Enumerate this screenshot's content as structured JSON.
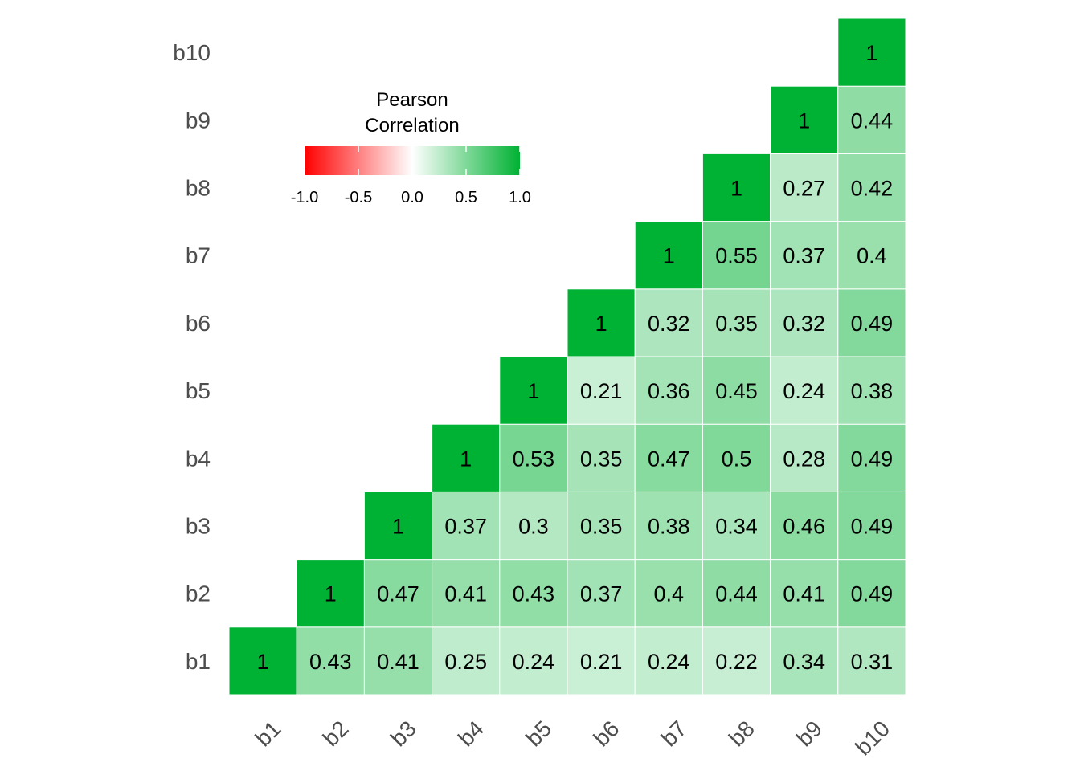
{
  "chart_data": {
    "type": "heatmap",
    "title": "",
    "xlabel": "",
    "ylabel": "",
    "variables": [
      "b1",
      "b2",
      "b3",
      "b4",
      "b5",
      "b6",
      "b7",
      "b8",
      "b9",
      "b10"
    ],
    "layout": "lower-triangle, b1 at bottom-left, x labels rotated 45 degrees",
    "matrix": [
      [
        1,
        0.43,
        0.41,
        0.25,
        0.24,
        0.21,
        0.24,
        0.22,
        0.34,
        0.31
      ],
      [
        0.43,
        1,
        0.47,
        0.41,
        0.43,
        0.37,
        0.4,
        0.44,
        0.41,
        0.49
      ],
      [
        0.41,
        0.47,
        1,
        0.37,
        0.3,
        0.35,
        0.38,
        0.34,
        0.46,
        0.49
      ],
      [
        0.25,
        0.41,
        0.37,
        1,
        0.53,
        0.35,
        0.47,
        0.5,
        0.28,
        0.49
      ],
      [
        0.24,
        0.43,
        0.3,
        0.53,
        1,
        0.21,
        0.36,
        0.45,
        0.24,
        0.38
      ],
      [
        0.21,
        0.37,
        0.35,
        0.35,
        0.21,
        1,
        0.32,
        0.35,
        0.32,
        0.49
      ],
      [
        0.24,
        0.4,
        0.38,
        0.47,
        0.36,
        0.32,
        1,
        0.55,
        0.37,
        0.4
      ],
      [
        0.22,
        0.44,
        0.34,
        0.5,
        0.45,
        0.35,
        0.55,
        1,
        0.27,
        0.42
      ],
      [
        0.34,
        0.41,
        0.46,
        0.28,
        0.24,
        0.32,
        0.37,
        0.27,
        1,
        0.44
      ],
      [
        0.31,
        0.49,
        0.49,
        0.49,
        0.38,
        0.49,
        0.4,
        0.42,
        0.44,
        1
      ]
    ],
    "legend": {
      "title_lines": [
        "Pearson",
        "Correlation"
      ],
      "range": [
        -1,
        1
      ],
      "ticks": [
        -1.0,
        -0.5,
        0.0,
        0.5,
        1.0
      ],
      "tick_labels": [
        "-1.0",
        "-0.5",
        "0.0",
        "0.5",
        "1.0"
      ],
      "placement": "top-left inside panel"
    },
    "colors": {
      "low": "#ff0000",
      "mid": "#ffffff",
      "high": "#00b233"
    },
    "grid": false
  }
}
